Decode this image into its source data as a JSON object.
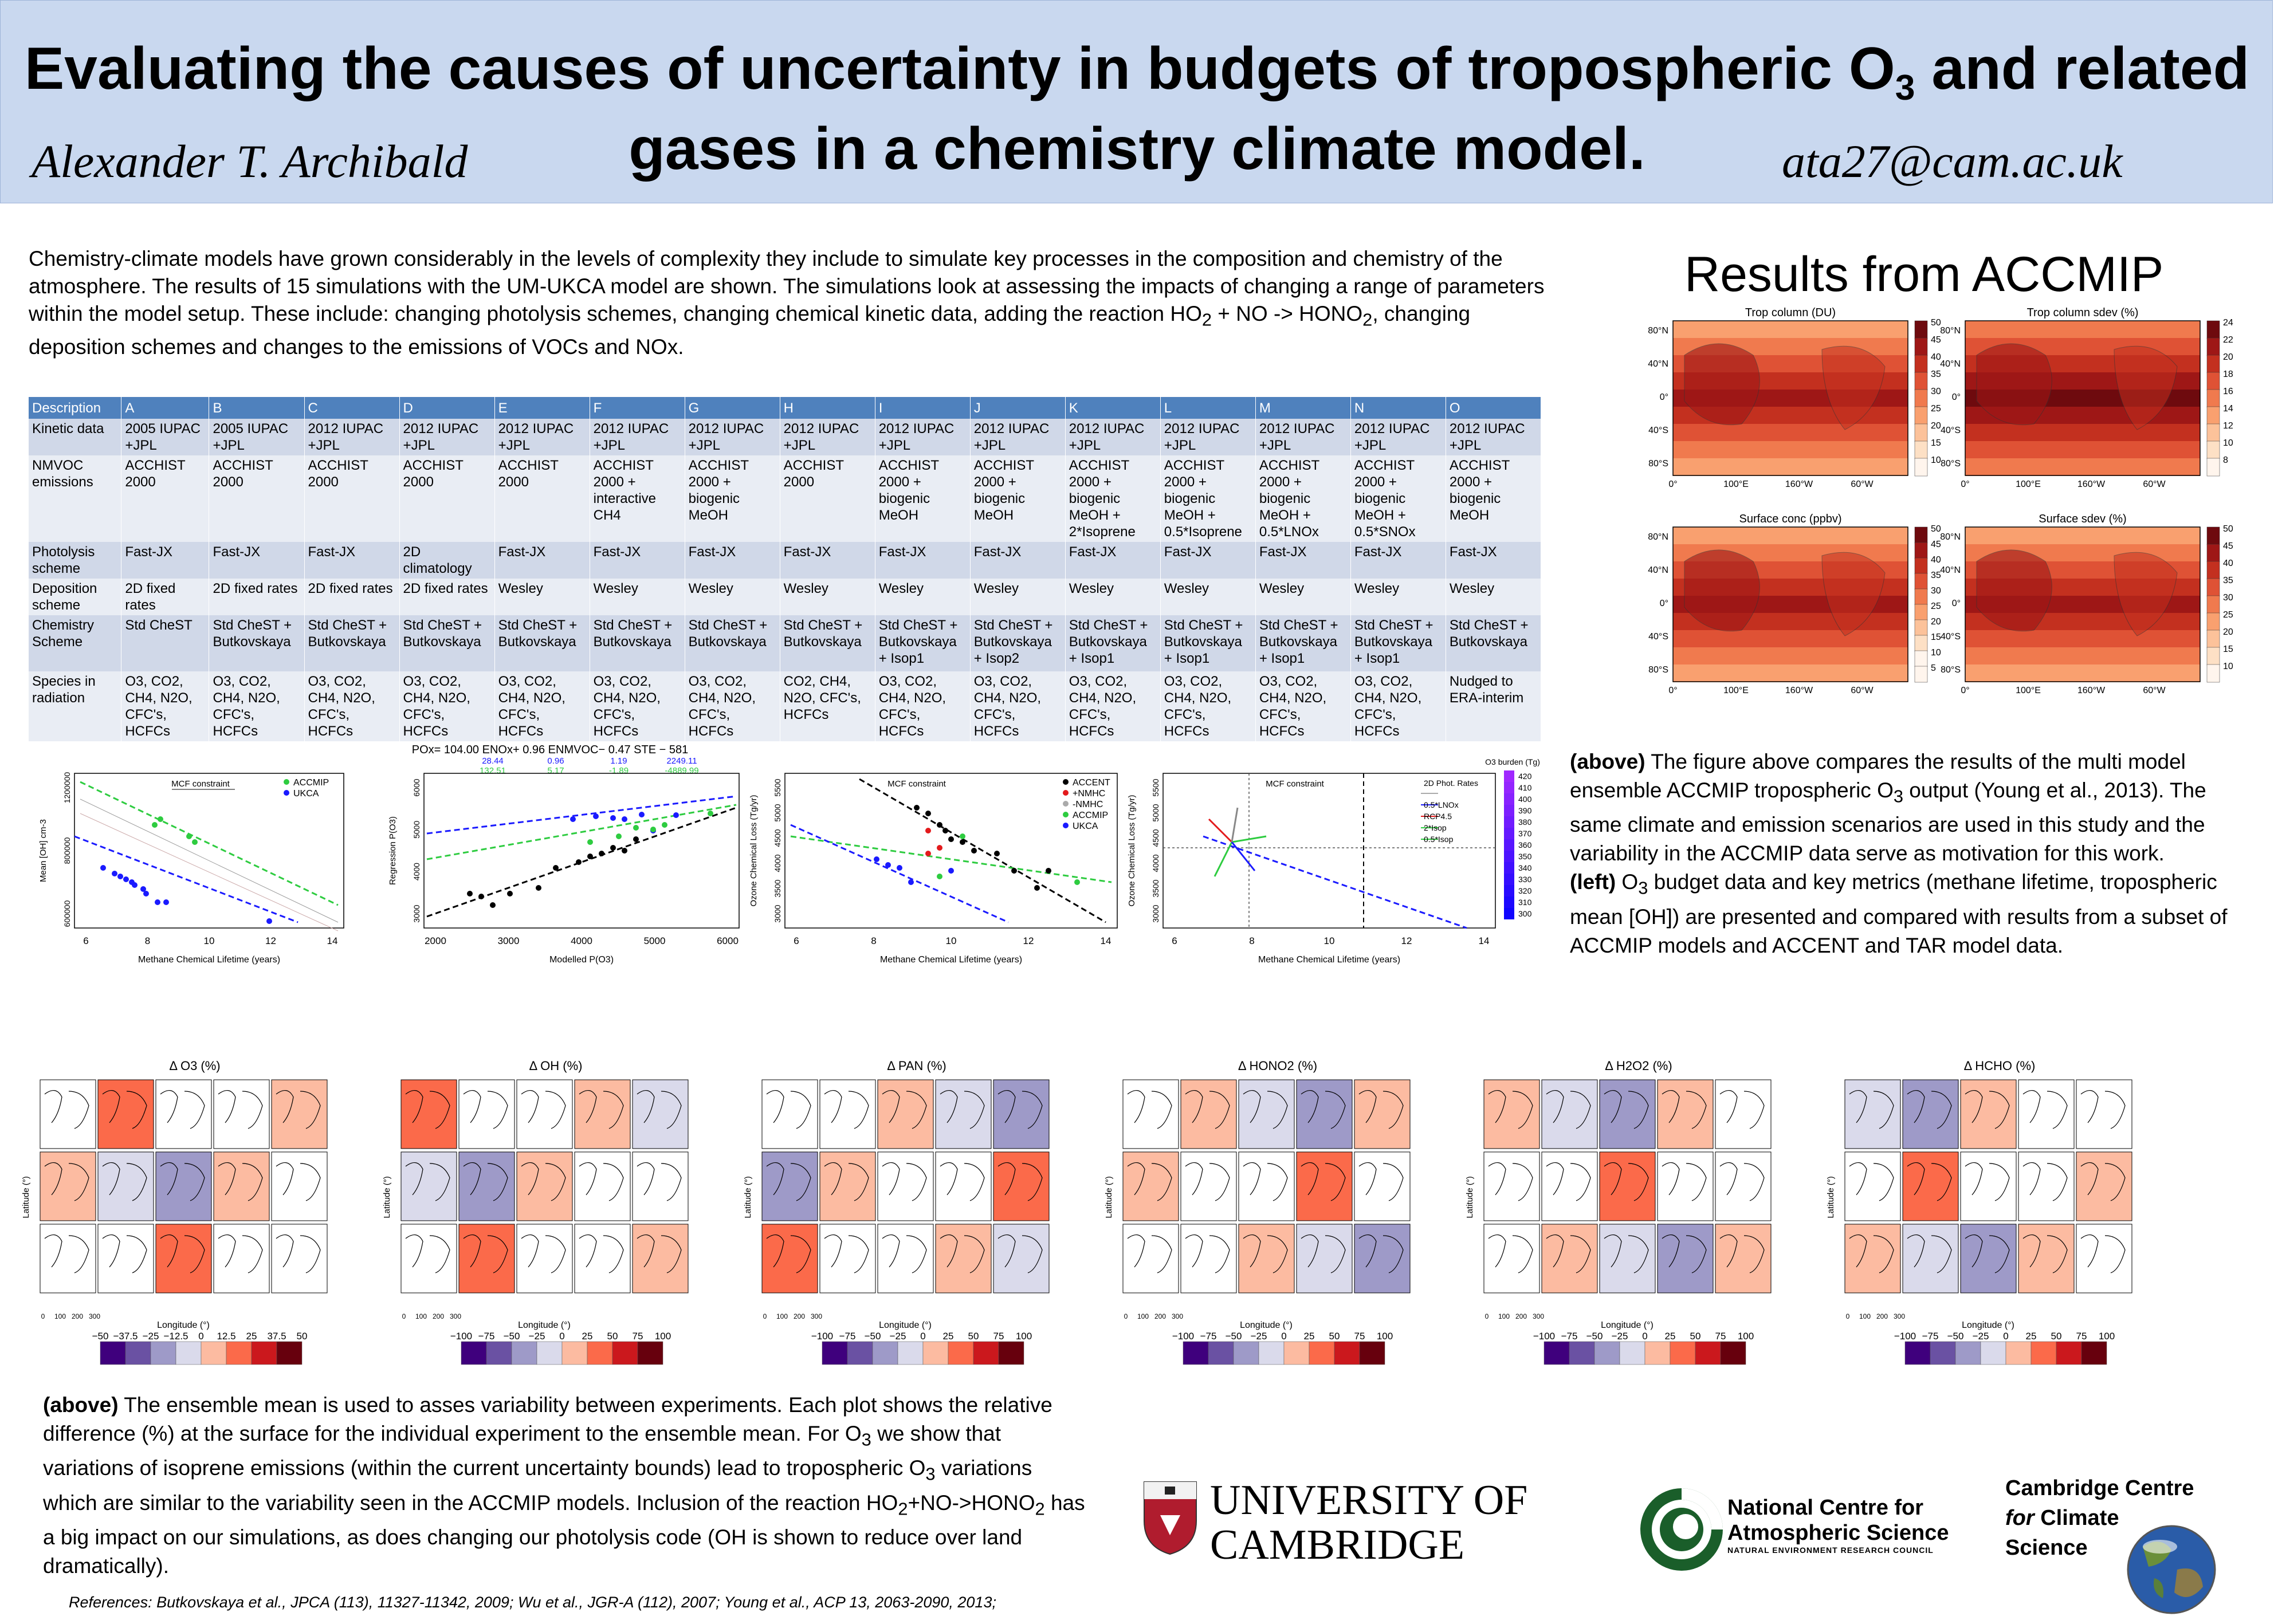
{
  "header": {
    "title_line1": "Evaluating the causes of uncertainty in budgets of tropospheric O",
    "title_line1_sub": "3",
    "title_line1_end": " and related",
    "title_line2": "gases in a chemistry climate model.",
    "author": "Alexander T. Archibald",
    "email": "ata27@cam.ac.uk"
  },
  "intro": {
    "p1": "Chemistry-climate models have grown considerably in the levels of complexity they include to simulate key processes in the composition and chemistry of the atmosphere. The results of 15 simulations with the UM-UKCA model are shown. The simulations look at assessing the impacts of changing a range of parameters within the model setup. These include: changing photolysis schemes, changing chemical kinetic data, adding the reaction HO",
    "sub1": "2",
    "p2": " + NO -> HONO",
    "sub2": "2",
    "p3": ", changing deposition schemes and changes to the emissions of VOCs and NOx."
  },
  "table": {
    "headers": [
      "Description",
      "A",
      "B",
      "C",
      "D",
      "E",
      "F",
      "G",
      "H",
      "I",
      "J",
      "K",
      "L",
      "M",
      "N",
      "O"
    ],
    "rows": [
      [
        "Kinetic data",
        "2005 IUPAC +JPL",
        "2005 IUPAC +JPL",
        "2012 IUPAC +JPL",
        "2012 IUPAC +JPL",
        "2012 IUPAC +JPL",
        "2012 IUPAC +JPL",
        "2012 IUPAC +JPL",
        "2012 IUPAC +JPL",
        "2012 IUPAC +JPL",
        "2012 IUPAC +JPL",
        "2012 IUPAC +JPL",
        "2012 IUPAC +JPL",
        "2012 IUPAC +JPL",
        "2012 IUPAC +JPL",
        "2012 IUPAC +JPL"
      ],
      [
        "NMVOC emissions",
        "ACCHIST 2000",
        "ACCHIST 2000",
        "ACCHIST 2000",
        "ACCHIST 2000",
        "ACCHIST 2000",
        "ACCHIST 2000 + interactive CH4",
        "ACCHIST 2000 + biogenic MeOH",
        "ACCHIST 2000",
        "ACCHIST 2000 + biogenic MeOH",
        "ACCHIST 2000 + biogenic MeOH",
        "ACCHIST 2000 + biogenic MeOH + 2*Isoprene",
        "ACCHIST 2000 + biogenic MeOH + 0.5*Isoprene",
        "ACCHIST 2000 + biogenic MeOH + 0.5*LNOx",
        "ACCHIST 2000 + biogenic MeOH + 0.5*SNOx",
        "ACCHIST 2000 + biogenic MeOH"
      ],
      [
        "Photolysis scheme",
        "Fast-JX",
        "Fast-JX",
        "Fast-JX",
        "2D climatology",
        "Fast-JX",
        "Fast-JX",
        "Fast-JX",
        "Fast-JX",
        "Fast-JX",
        "Fast-JX",
        "Fast-JX",
        "Fast-JX",
        "Fast-JX",
        "Fast-JX",
        "Fast-JX"
      ],
      [
        "Deposition scheme",
        "2D fixed rates",
        "2D fixed rates",
        "2D fixed rates",
        "2D fixed rates",
        "Wesley",
        "Wesley",
        "Wesley",
        "Wesley",
        "Wesley",
        "Wesley",
        "Wesley",
        "Wesley",
        "Wesley",
        "Wesley",
        "Wesley"
      ],
      [
        "Chemistry Scheme",
        "Std CheST",
        "Std CheST + Butkovskaya",
        "Std CheST + Butkovskaya",
        "Std CheST + Butkovskaya",
        "Std CheST + Butkovskaya",
        "Std CheST + Butkovskaya",
        "Std CheST + Butkovskaya",
        "Std CheST + Butkovskaya",
        "Std CheST + Butkovskaya + Isop1",
        "Std CheST + Butkovskaya + Isop2",
        "Std CheST + Butkovskaya + Isop1",
        "Std CheST + Butkovskaya + Isop1",
        "Std CheST + Butkovskaya + Isop1",
        "Std CheST + Butkovskaya + Isop1",
        "Std CheST + Butkovskaya"
      ],
      [
        "Species in radiation",
        "O3, CO2, CH4, N2O, CFC's, HCFCs",
        "O3, CO2, CH4, N2O, CFC's, HCFCs",
        "O3, CO2, CH4, N2O, CFC's, HCFCs",
        "O3, CO2, CH4, N2O, CFC's, HCFCs",
        "O3, CO2, CH4, N2O, CFC's, HCFCs",
        "O3, CO2, CH4, N2O, CFC's, HCFCs",
        "O3, CO2, CH4, N2O, CFC's, HCFCs",
        "CO2, CH4, N2O, CFC's, HCFCs",
        "O3, CO2, CH4, N2O, CFC's, HCFCs",
        "O3, CO2, CH4, N2O, CFC's, HCFCs",
        "O3, CO2, CH4, N2O, CFC's, HCFCs",
        "O3, CO2, CH4, N2O, CFC's, HCFCs",
        "O3, CO2, CH4, N2O, CFC's, HCFCs",
        "O3, CO2, CH4, N2O, CFC's, HCFCs",
        "Nudged to ERA-interim"
      ]
    ]
  },
  "accmip": {
    "title": "Results from ACCMIP",
    "maps": [
      {
        "title": "Trop column (DU)",
        "scale": [
          "50",
          "45",
          "40",
          "35",
          "30",
          "25",
          "20",
          "15",
          "10"
        ],
        "palette": "red"
      },
      {
        "title": "Trop column sdev (%)",
        "scale": [
          "24",
          "22",
          "20",
          "18",
          "16",
          "14",
          "12",
          "10",
          "8"
        ],
        "palette": "red"
      },
      {
        "title": "Surface conc (ppbv)",
        "scale": [
          "50",
          "45",
          "40",
          "35",
          "30",
          "25",
          "20",
          "15",
          "10",
          "5"
        ],
        "palette": "red"
      },
      {
        "title": "Surface sdev (%)",
        "scale": [
          "50",
          "45",
          "40",
          "35",
          "30",
          "25",
          "20",
          "15",
          "10"
        ],
        "palette": "red"
      }
    ],
    "lat_ticks": [
      "80°N",
      "40°N",
      "0°",
      "40°S",
      "80°S"
    ],
    "lon_ticks": [
      "0°",
      "100°E",
      "160°W",
      "60°W"
    ]
  },
  "right_caption": {
    "b1": "(above)",
    "t1": " The figure above compares the results of the multi model ensemble ACCMIP tropospheric O",
    "s1": "3",
    "t2": " output (Young et al., 2013). The same climate and emission scenarios are used in this study and the variability in the ACCMIP data serve as motivation for this work.",
    "b2": "(left)",
    "t3": " O",
    "s2": "3",
    "t4": " budget data and key metrics (methane lifetime, tropospheric mean [OH]) are presented and compared with results from a subset of ACCMIP models and ACCENT and TAR model data."
  },
  "scatter": {
    "p1": {
      "ylabel": "Mean [OH] cm-3",
      "xlabel": "Methane Chemical Lifetime (years)",
      "legend": [
        "ACCMIP",
        "UKCA"
      ],
      "note": "MCF constraint",
      "xticks": [
        "6",
        "8",
        "10",
        "12",
        "14"
      ],
      "yticks": [
        "600000",
        "800000",
        "1200000"
      ]
    },
    "p2": {
      "title": "POx= 104.00 ENOx+ 0.96 ENMVOC− 0.47 STE − 581",
      "coef_blue": [
        "28.44",
        "0.96",
        "1.19",
        "2249.11"
      ],
      "coef_green": [
        "132.51",
        "5.17",
        "-1.89",
        "-4889.99"
      ],
      "ylabel": "Regression P(O3)",
      "xlabel": "Modelled P(O3)",
      "xticks": [
        "2000",
        "3000",
        "4000",
        "5000",
        "6000"
      ],
      "yticks": [
        "3000",
        "4000",
        "5000",
        "6000"
      ]
    },
    "p3": {
      "ylabel": "Ozone Chemical Loss (Tg/yr)",
      "xlabel": "Methane Chemical Lifetime (years)",
      "note": "MCF constraint",
      "legend": [
        "ACCENT",
        "+NMHC",
        "-NMHC",
        "ACCMIP",
        "UKCA"
      ],
      "xticks": [
        "6",
        "8",
        "10",
        "12",
        "14"
      ],
      "yticks": [
        "3000",
        "3500",
        "4000",
        "4500",
        "5000",
        "5500"
      ]
    },
    "p4": {
      "ylabel": "Ozone Chemical Loss (Tg/yr)",
      "xlabel": "Methane Chemical Lifetime (years)",
      "note": "MCF constraint",
      "legend": [
        "2D Phot. Rates",
        "0.5*LNOx",
        "RCP4.5",
        "2*Isop",
        "0.5*Isop"
      ],
      "cbar_title": "O3 burden (Tg)",
      "cbar": [
        "420",
        "410",
        "400",
        "390",
        "380",
        "370",
        "360",
        "350",
        "340",
        "330",
        "320",
        "310",
        "300"
      ],
      "xticks": [
        "6",
        "8",
        "10",
        "12",
        "14"
      ],
      "yticks": [
        "3000",
        "3500",
        "4000",
        "4500",
        "5000",
        "5500"
      ]
    }
  },
  "panels": [
    {
      "title": "Δ O3 (%)",
      "scale": [
        "−50",
        "−37.5",
        "−25",
        "−12.5",
        "0",
        "12.5",
        "25",
        "37.5",
        "50"
      ]
    },
    {
      "title": "Δ OH (%)",
      "scale": [
        "−100",
        "−75",
        "−50",
        "−25",
        "0",
        "25",
        "50",
        "75",
        "100"
      ]
    },
    {
      "title": "Δ PAN (%)",
      "scale": [
        "−100",
        "−75",
        "−50",
        "−25",
        "0",
        "25",
        "50",
        "75",
        "100"
      ]
    },
    {
      "title": "Δ HONO2 (%)",
      "scale": [
        "−100",
        "−75",
        "−50",
        "−25",
        "0",
        "25",
        "50",
        "75",
        "100"
      ]
    },
    {
      "title": "Δ H2O2 (%)",
      "scale": [
        "−100",
        "−75",
        "−50",
        "−25",
        "0",
        "25",
        "50",
        "75",
        "100"
      ]
    },
    {
      "title": "Δ HCHO (%)",
      "scale": [
        "−100",
        "−75",
        "−50",
        "−25",
        "0",
        "25",
        "50",
        "75",
        "100"
      ]
    }
  ],
  "panel_axes": {
    "ylabel": "Latitude (°)",
    "xlabel": "Longitude (°)",
    "xticks": [
      "0",
      "100",
      "200",
      "300"
    ]
  },
  "bottom_caption": {
    "b1": "(above)",
    "t1": " The ensemble mean is used to asses variability between experiments. Each plot shows the relative difference (%) at the surface for the individual experiment to the ensemble mean. For O",
    "s1": "3",
    "t2": " we show that variations of isoprene emissions (within the current uncertainty bounds) lead to tropospheric O",
    "s2": "3",
    "t3": " variations which are similar to the variability seen in the ACCMIP models. Inclusion of the reaction HO",
    "s3": "2",
    "t4": "+NO->HONO",
    "s4": "2",
    "t5": " has a big impact on our simulations, as does changing our photolysis code (OH is shown to reduce over land dramatically)."
  },
  "references": "References: Butkovskaya et al., JPCA (113), 11327-11342, 2009; Wu et al., JGR-A (112), 2007;  Young et al., ACP 13, 2063-2090, 2013;",
  "logos": {
    "cambridge_line1": "UNIVERSITY OF",
    "cambridge_line2": "CAMBRIDGE",
    "ncas_line1": "National Centre for",
    "ncas_line2": "Atmospheric Science",
    "ncas_line3": "NATURAL ENVIRONMENT RESEARCH COUNCIL",
    "ccfcs_line1": "Cambridge Centre",
    "ccfcs_line2": "for",
    "ccfcs_line2b": " Climate",
    "ccfcs_line3": "Science"
  }
}
